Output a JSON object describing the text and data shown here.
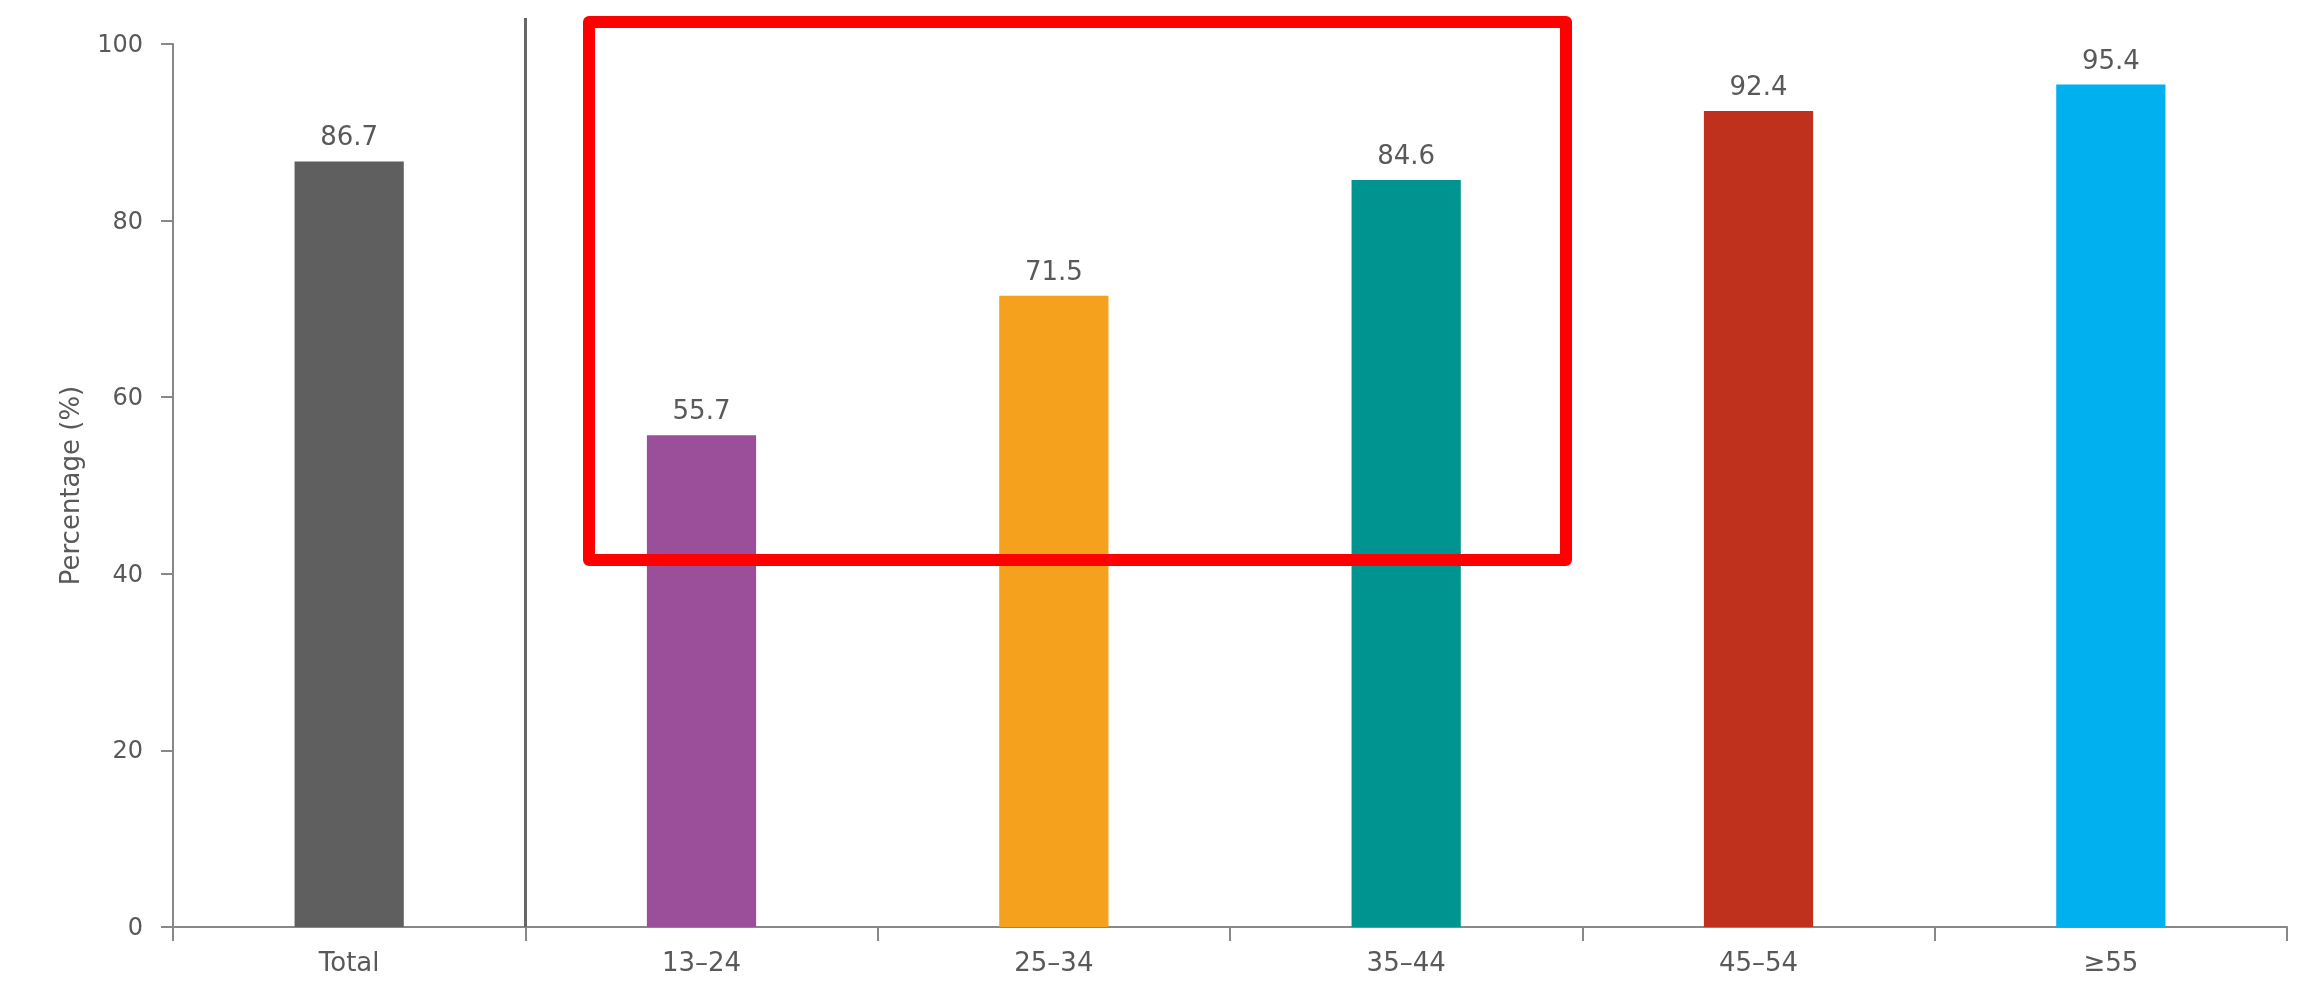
{
  "chart_data": {
    "type": "bar",
    "categories": [
      "Total",
      "13–24",
      "25–34",
      "35–44",
      "45–54",
      "≥55"
    ],
    "values": [
      86.7,
      55.7,
      71.5,
      84.6,
      92.4,
      95.4
    ],
    "colors": [
      "#5f5f5f",
      "#9b4f9b",
      "#f5a11d",
      "#009490",
      "#c0311d",
      "#00b0ef"
    ],
    "ylabel": "Percentage (%)",
    "ylim": [
      0,
      100
    ],
    "yticks": [
      0,
      20,
      40,
      60,
      80,
      100
    ],
    "data_labels": true,
    "grid": false
  }
}
